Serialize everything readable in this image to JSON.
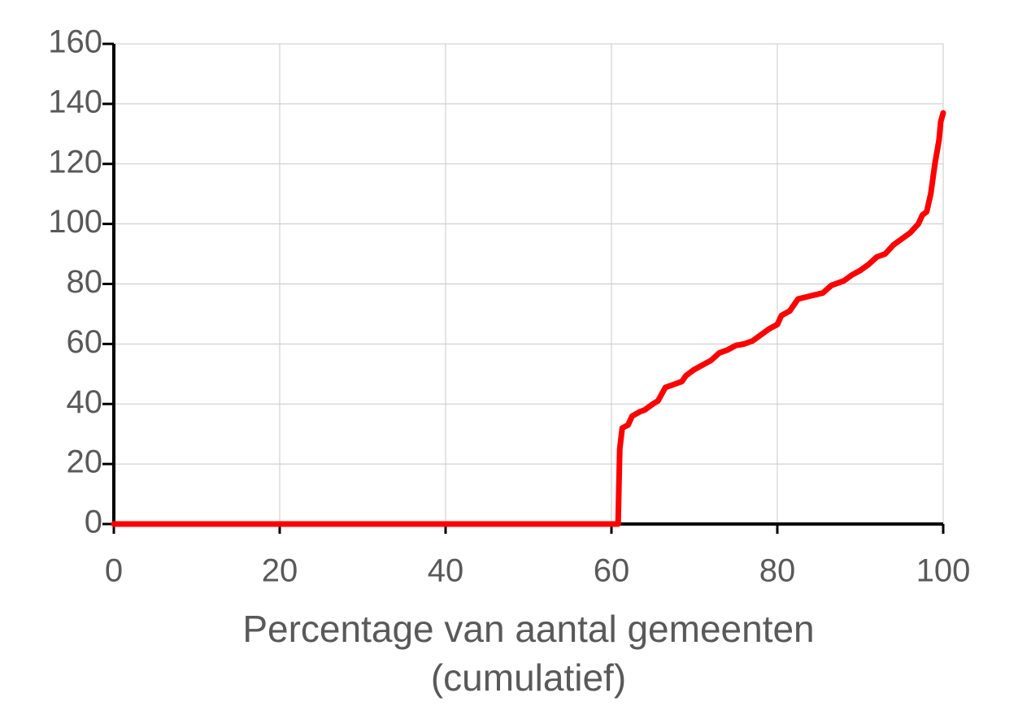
{
  "chart_data": {
    "type": "line",
    "xlabel": [
      "Percentage van aantal gemeenten",
      "(cumulatief)"
    ],
    "x": [
      0,
      60.8,
      61,
      61.3,
      62,
      62.5,
      63.5,
      64,
      65,
      65.6,
      66.5,
      67.5,
      68.5,
      69,
      70,
      71,
      72,
      73,
      74,
      75,
      76,
      77,
      78,
      79,
      80,
      80.5,
      81.5,
      82.5,
      84,
      85.5,
      86.5,
      88,
      89,
      90,
      91,
      92,
      93,
      94,
      95,
      96,
      97,
      97.5,
      98,
      98.5,
      99,
      99.5,
      99.7,
      100
    ],
    "series": [
      {
        "color": "#ff0000",
        "values": [
          0,
          0,
          25,
          32,
          33,
          36,
          37.5,
          38,
          40,
          41,
          45.5,
          46.5,
          47.5,
          49.5,
          51.5,
          53,
          54.5,
          57,
          58,
          59.5,
          60,
          61,
          63,
          65,
          66.5,
          69.5,
          71,
          75,
          76,
          77,
          79.5,
          81,
          83,
          84.5,
          86.5,
          89,
          90,
          93,
          95,
          97,
          100,
          103,
          104,
          110,
          120,
          128,
          134,
          137
        ]
      }
    ],
    "xlim": [
      0,
      100
    ],
    "xticks": [
      0,
      20,
      40,
      60,
      80,
      100
    ],
    "ylim": [
      0,
      160
    ],
    "yticks": [
      0,
      20,
      40,
      60,
      80,
      100,
      120,
      140,
      160
    ],
    "grid": true
  }
}
